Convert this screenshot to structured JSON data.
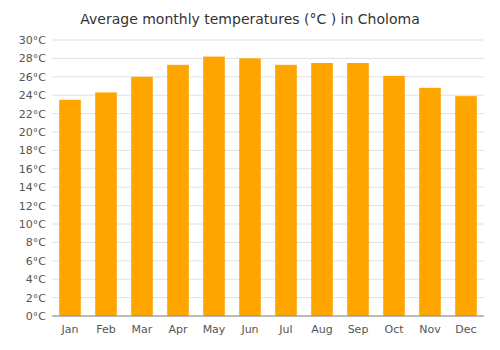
{
  "chart_data": {
    "type": "bar",
    "title": "Average monthly temperatures (°C ) in Choloma",
    "categories": [
      "Jan",
      "Feb",
      "Mar",
      "Apr",
      "May",
      "Jun",
      "Jul",
      "Aug",
      "Sep",
      "Oct",
      "Nov",
      "Dec"
    ],
    "values": [
      23.5,
      24.3,
      26.0,
      27.3,
      28.2,
      28.0,
      27.3,
      27.5,
      27.5,
      26.1,
      24.8,
      23.9
    ],
    "color": "#FFA500",
    "ylim": [
      0,
      30
    ],
    "yticks": [
      {
        "value": 0,
        "label": "0°C"
      },
      {
        "value": 2,
        "label": "2°C"
      },
      {
        "value": 4,
        "label": "4°C"
      },
      {
        "value": 6,
        "label": "6°C"
      },
      {
        "value": 8,
        "label": "8°C"
      },
      {
        "value": 10,
        "label": "10°C"
      },
      {
        "value": 12,
        "label": "12°C"
      },
      {
        "value": 14,
        "label": "14°C"
      },
      {
        "value": 16,
        "label": "16°C"
      },
      {
        "value": 18,
        "label": "18°C"
      },
      {
        "value": 20,
        "label": "20°C"
      },
      {
        "value": 22,
        "label": "22°C"
      },
      {
        "value": 24,
        "label": "24°C"
      },
      {
        "value": 26,
        "label": "26°C"
      },
      {
        "value": 28,
        "label": "28°C"
      },
      {
        "value": 30,
        "label": "30°C"
      }
    ],
    "grid": true
  }
}
